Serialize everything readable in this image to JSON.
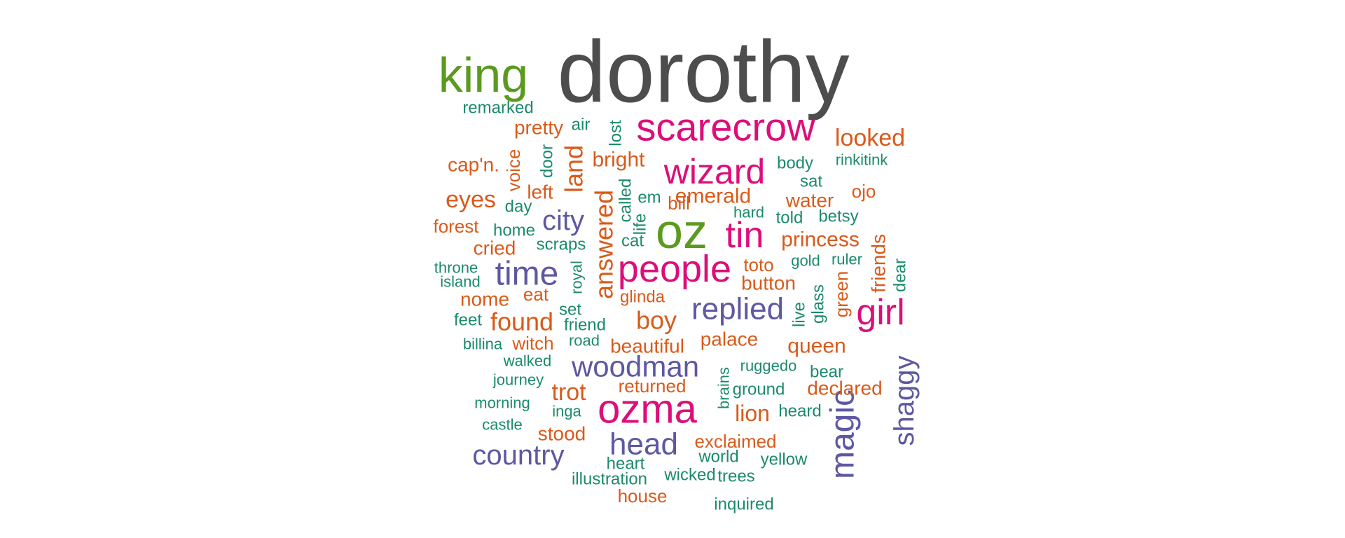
{
  "palette": {
    "dark_gray": "#4d4d4d",
    "green": "#5b9a1f",
    "pink": "#dc0e7a",
    "orange": "#d95a1a",
    "teal": "#1b8a6b",
    "purple": "#5e58a3"
  },
  "words": [
    {
      "text": "dorothy",
      "weight": 125,
      "color": "dark_gray"
    },
    {
      "text": "king",
      "weight": 70,
      "color": "green"
    },
    {
      "text": "oz",
      "weight": 70,
      "color": "green"
    },
    {
      "text": "scarecrow",
      "weight": 56,
      "color": "pink"
    },
    {
      "text": "ozma",
      "weight": 58,
      "color": "pink"
    },
    {
      "text": "wizard",
      "weight": 50,
      "color": "pink"
    },
    {
      "text": "people",
      "weight": 54,
      "color": "pink"
    },
    {
      "text": "tin",
      "weight": 52,
      "color": "pink"
    },
    {
      "text": "girl",
      "weight": 52,
      "color": "pink"
    },
    {
      "text": "magic",
      "weight": 48,
      "color": "purple"
    },
    {
      "text": "time",
      "weight": 48,
      "color": "purple"
    },
    {
      "text": "replied",
      "weight": 44,
      "color": "purple"
    },
    {
      "text": "woodman",
      "weight": 42,
      "color": "purple"
    },
    {
      "text": "head",
      "weight": 44,
      "color": "purple"
    },
    {
      "text": "country",
      "weight": 40,
      "color": "purple"
    },
    {
      "text": "shaggy",
      "weight": 40,
      "color": "purple"
    },
    {
      "text": "city",
      "weight": 40,
      "color": "purple"
    },
    {
      "text": "answered",
      "weight": 36,
      "color": "orange"
    },
    {
      "text": "land",
      "weight": 36,
      "color": "orange"
    },
    {
      "text": "boy",
      "weight": 36,
      "color": "orange"
    },
    {
      "text": "found",
      "weight": 36,
      "color": "orange"
    },
    {
      "text": "eyes",
      "weight": 34,
      "color": "orange"
    },
    {
      "text": "looked",
      "weight": 34,
      "color": "orange"
    },
    {
      "text": "trot",
      "weight": 34,
      "color": "orange"
    },
    {
      "text": "bright",
      "weight": 30,
      "color": "orange"
    },
    {
      "text": "emerald",
      "weight": 30,
      "color": "orange"
    },
    {
      "text": "princess",
      "weight": 30,
      "color": "orange"
    },
    {
      "text": "lion",
      "weight": 32,
      "color": "orange"
    },
    {
      "text": "queen",
      "weight": 30,
      "color": "orange"
    },
    {
      "text": "cried",
      "weight": 28,
      "color": "orange"
    },
    {
      "text": "water",
      "weight": 28,
      "color": "orange"
    },
    {
      "text": "button",
      "weight": 28,
      "color": "orange"
    },
    {
      "text": "palace",
      "weight": 28,
      "color": "orange"
    },
    {
      "text": "beautiful",
      "weight": 28,
      "color": "orange"
    },
    {
      "text": "declared",
      "weight": 28,
      "color": "orange"
    },
    {
      "text": "stood",
      "weight": 28,
      "color": "orange"
    },
    {
      "text": "pretty",
      "weight": 28,
      "color": "orange"
    },
    {
      "text": "cap'n.",
      "weight": 28,
      "color": "orange"
    },
    {
      "text": "left",
      "weight": 28,
      "color": "orange"
    },
    {
      "text": "friends",
      "weight": 28,
      "color": "orange"
    },
    {
      "text": "nome",
      "weight": 28,
      "color": "orange"
    },
    {
      "text": "forest",
      "weight": 26,
      "color": "orange"
    },
    {
      "text": "witch",
      "weight": 26,
      "color": "orange"
    },
    {
      "text": "returned",
      "weight": 26,
      "color": "orange"
    },
    {
      "text": "exclaimed",
      "weight": 26,
      "color": "orange"
    },
    {
      "text": "bill",
      "weight": 26,
      "color": "orange"
    },
    {
      "text": "ojo",
      "weight": 26,
      "color": "orange"
    },
    {
      "text": "eat",
      "weight": 26,
      "color": "orange"
    },
    {
      "text": "toto",
      "weight": 26,
      "color": "orange"
    },
    {
      "text": "house",
      "weight": 26,
      "color": "orange"
    },
    {
      "text": "green",
      "weight": 26,
      "color": "orange"
    },
    {
      "text": "voice",
      "weight": 26,
      "color": "orange"
    },
    {
      "text": "glinda",
      "weight": 24,
      "color": "orange"
    },
    {
      "text": "remarked",
      "weight": 24,
      "color": "teal"
    },
    {
      "text": "air",
      "weight": 24,
      "color": "teal"
    },
    {
      "text": "lost",
      "weight": 24,
      "color": "teal"
    },
    {
      "text": "door",
      "weight": 24,
      "color": "teal"
    },
    {
      "text": "body",
      "weight": 24,
      "color": "teal"
    },
    {
      "text": "rinkitink",
      "weight": 22,
      "color": "teal"
    },
    {
      "text": "sat",
      "weight": 24,
      "color": "teal"
    },
    {
      "text": "called",
      "weight": 24,
      "color": "teal"
    },
    {
      "text": "em",
      "weight": 24,
      "color": "teal"
    },
    {
      "text": "day",
      "weight": 24,
      "color": "teal"
    },
    {
      "text": "hard",
      "weight": 22,
      "color": "teal"
    },
    {
      "text": "told",
      "weight": 24,
      "color": "teal"
    },
    {
      "text": "betsy",
      "weight": 24,
      "color": "teal"
    },
    {
      "text": "home",
      "weight": 24,
      "color": "teal"
    },
    {
      "text": "life",
      "weight": 24,
      "color": "teal"
    },
    {
      "text": "cat",
      "weight": 24,
      "color": "teal"
    },
    {
      "text": "scraps",
      "weight": 24,
      "color": "teal"
    },
    {
      "text": "gold",
      "weight": 22,
      "color": "teal"
    },
    {
      "text": "ruler",
      "weight": 22,
      "color": "teal"
    },
    {
      "text": "throne",
      "weight": 22,
      "color": "teal"
    },
    {
      "text": "island",
      "weight": 22,
      "color": "teal"
    },
    {
      "text": "royal",
      "weight": 22,
      "color": "teal"
    },
    {
      "text": "dear",
      "weight": 24,
      "color": "teal"
    },
    {
      "text": "glass",
      "weight": 24,
      "color": "teal"
    },
    {
      "text": "set",
      "weight": 24,
      "color": "teal"
    },
    {
      "text": "live",
      "weight": 24,
      "color": "teal"
    },
    {
      "text": "feet",
      "weight": 24,
      "color": "teal"
    },
    {
      "text": "friend",
      "weight": 24,
      "color": "teal"
    },
    {
      "text": "road",
      "weight": 22,
      "color": "teal"
    },
    {
      "text": "billina",
      "weight": 22,
      "color": "teal"
    },
    {
      "text": "walked",
      "weight": 22,
      "color": "teal"
    },
    {
      "text": "ruggedo",
      "weight": 22,
      "color": "teal"
    },
    {
      "text": "journey",
      "weight": 22,
      "color": "teal"
    },
    {
      "text": "brains",
      "weight": 22,
      "color": "teal"
    },
    {
      "text": "bear",
      "weight": 24,
      "color": "teal"
    },
    {
      "text": "ground",
      "weight": 24,
      "color": "teal"
    },
    {
      "text": "morning",
      "weight": 22,
      "color": "teal"
    },
    {
      "text": "inga",
      "weight": 22,
      "color": "teal"
    },
    {
      "text": "heard",
      "weight": 24,
      "color": "teal"
    },
    {
      "text": "castle",
      "weight": 22,
      "color": "teal"
    },
    {
      "text": "world",
      "weight": 24,
      "color": "teal"
    },
    {
      "text": "yellow",
      "weight": 24,
      "color": "teal"
    },
    {
      "text": "heart",
      "weight": 24,
      "color": "teal"
    },
    {
      "text": "wicked",
      "weight": 24,
      "color": "teal"
    },
    {
      "text": "trees",
      "weight": 24,
      "color": "teal"
    },
    {
      "text": "illustration",
      "weight": 24,
      "color": "teal"
    },
    {
      "text": "inquired",
      "weight": 24,
      "color": "teal"
    }
  ]
}
